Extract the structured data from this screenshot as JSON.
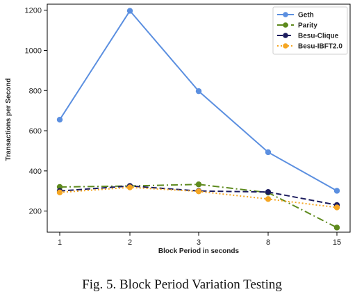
{
  "caption": "Fig. 5.  Block Period Variation Testing",
  "chart_data": {
    "type": "line",
    "categories": [
      "1",
      "2",
      "3",
      "8",
      "15"
    ],
    "xlabel": "Block Period in seconds",
    "ylabel": "Transactions per Second",
    "ylim": [
      95,
      1230
    ],
    "yticks": [
      200,
      400,
      600,
      800,
      1000,
      1200
    ],
    "grid": false,
    "legend_position": "top-right",
    "series": [
      {
        "name": "Geth",
        "color": "#5b8fe0",
        "dash": "solid",
        "values": [
          655,
          1197,
          797,
          493,
          301
        ]
      },
      {
        "name": "Parity",
        "color": "#5e8a1e",
        "dash": "dashdot",
        "values": [
          320,
          325,
          333,
          292,
          118
        ]
      },
      {
        "name": "Besu-Clique",
        "color": "#1c1c5e",
        "dash": "dashed",
        "values": [
          300,
          325,
          300,
          295,
          230
        ]
      },
      {
        "name": "Besu-IBFT2.0",
        "color": "#f5a623",
        "dash": "dotted",
        "values": [
          293,
          318,
          298,
          260,
          218
        ]
      }
    ]
  }
}
